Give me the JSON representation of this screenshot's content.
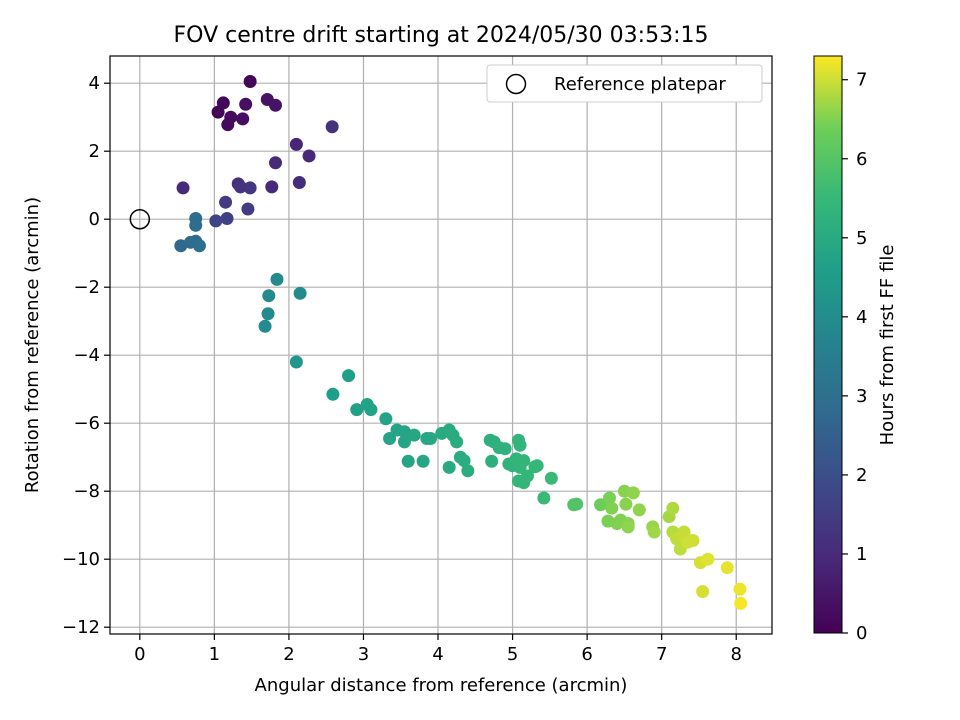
{
  "chart_data": {
    "type": "scatter",
    "title": "FOV centre drift starting at 2024/05/30 03:53:15",
    "xlabel": "Angular distance from reference (arcmin)",
    "ylabel": "Rotation from reference (arcmin)",
    "xlim": [
      -0.4,
      8.48
    ],
    "ylim": [
      -12.2,
      4.8
    ],
    "xticks": [
      0,
      1,
      2,
      3,
      4,
      5,
      6,
      7,
      8
    ],
    "yticks": [
      -12,
      -10,
      -8,
      -6,
      -4,
      -2,
      0,
      2,
      4
    ],
    "grid": true,
    "legend": {
      "position": "top-right",
      "entries": [
        "Reference platepar"
      ]
    },
    "reference_point": {
      "x": 0,
      "y": 0
    },
    "colorbar": {
      "label": "Hours from first FF file",
      "range": [
        0,
        7.3
      ],
      "ticks": [
        0,
        1,
        2,
        3,
        4,
        5,
        6,
        7
      ],
      "colormap": "viridis"
    },
    "points": [
      [
        1.05,
        3.15,
        0.05
      ],
      [
        1.48,
        4.05,
        0.1
      ],
      [
        1.12,
        3.42,
        0.15
      ],
      [
        1.18,
        2.78,
        0.2
      ],
      [
        1.22,
        3.0,
        0.25
      ],
      [
        1.38,
        2.95,
        0.3
      ],
      [
        1.42,
        3.38,
        0.35
      ],
      [
        1.71,
        3.52,
        0.4
      ],
      [
        1.82,
        3.35,
        0.45
      ],
      [
        2.1,
        2.2,
        0.85
      ],
      [
        2.27,
        1.86,
        0.9
      ],
      [
        1.82,
        1.66,
        1.0
      ],
      [
        2.58,
        2.72,
        1.2
      ],
      [
        2.14,
        1.08,
        1.05
      ],
      [
        1.77,
        0.95,
        1.0
      ],
      [
        1.32,
        1.04,
        1.1
      ],
      [
        1.48,
        0.92,
        1.3
      ],
      [
        1.35,
        0.95,
        1.25
      ],
      [
        0.58,
        0.92,
        1.0
      ],
      [
        1.15,
        0.5,
        1.4
      ],
      [
        1.45,
        0.3,
        1.5
      ],
      [
        1.17,
        0.02,
        1.6
      ],
      [
        1.02,
        -0.05,
        1.7
      ],
      [
        0.75,
        0.02,
        2.9
      ],
      [
        0.75,
        -0.18,
        2.9
      ],
      [
        0.55,
        -0.78,
        2.75
      ],
      [
        0.68,
        -0.68,
        2.85
      ],
      [
        0.75,
        -0.65,
        2.9
      ],
      [
        0.8,
        -0.78,
        2.95
      ],
      [
        1.84,
        -1.77,
        3.9
      ],
      [
        2.15,
        -2.18,
        3.95
      ],
      [
        1.73,
        -2.25,
        3.95
      ],
      [
        1.72,
        -2.78,
        3.95
      ],
      [
        1.68,
        -3.15,
        3.9
      ],
      [
        2.1,
        -4.2,
        4.3
      ],
      [
        2.59,
        -5.15,
        4.55
      ],
      [
        2.8,
        -4.6,
        4.6
      ],
      [
        2.91,
        -5.6,
        4.65
      ],
      [
        3.05,
        -5.45,
        4.7
      ],
      [
        3.1,
        -5.6,
        4.7
      ],
      [
        3.3,
        -5.87,
        4.75
      ],
      [
        3.35,
        -6.45,
        4.75
      ],
      [
        3.45,
        -6.2,
        4.8
      ],
      [
        3.55,
        -6.25,
        4.8
      ],
      [
        3.55,
        -6.55,
        4.8
      ],
      [
        3.6,
        -7.12,
        4.8
      ],
      [
        3.68,
        -6.35,
        4.85
      ],
      [
        3.8,
        -7.12,
        4.85
      ],
      [
        3.85,
        -6.45,
        4.9
      ],
      [
        3.9,
        -6.45,
        4.9
      ],
      [
        4.05,
        -6.3,
        5.0
      ],
      [
        4.15,
        -6.2,
        5.0
      ],
      [
        4.15,
        -7.3,
        5.0
      ],
      [
        4.2,
        -6.35,
        5.05
      ],
      [
        4.25,
        -6.55,
        5.05
      ],
      [
        4.3,
        -7.0,
        5.05
      ],
      [
        4.35,
        -7.1,
        5.1
      ],
      [
        4.4,
        -7.4,
        5.1
      ],
      [
        4.7,
        -6.5,
        5.2
      ],
      [
        4.75,
        -6.55,
        5.2
      ],
      [
        4.72,
        -7.12,
        5.2
      ],
      [
        4.82,
        -6.72,
        5.25
      ],
      [
        4.9,
        -6.75,
        5.25
      ],
      [
        4.95,
        -7.2,
        5.3
      ],
      [
        5.0,
        -7.25,
        5.3
      ],
      [
        5.08,
        -6.5,
        5.35
      ],
      [
        5.1,
        -6.65,
        5.35
      ],
      [
        5.05,
        -7.05,
        5.35
      ],
      [
        5.1,
        -7.3,
        5.4
      ],
      [
        5.15,
        -7.1,
        5.4
      ],
      [
        5.08,
        -7.7,
        5.4
      ],
      [
        5.15,
        -7.75,
        5.4
      ],
      [
        5.2,
        -7.55,
        5.45
      ],
      [
        5.3,
        -7.28,
        5.45
      ],
      [
        5.33,
        -7.25,
        5.45
      ],
      [
        5.42,
        -8.2,
        5.55
      ],
      [
        5.52,
        -7.62,
        5.55
      ],
      [
        5.82,
        -8.4,
        5.95
      ],
      [
        5.86,
        -8.38,
        5.95
      ],
      [
        6.18,
        -8.4,
        6.35
      ],
      [
        6.28,
        -8.88,
        6.45
      ],
      [
        6.3,
        -8.2,
        6.45
      ],
      [
        6.33,
        -8.5,
        6.5
      ],
      [
        6.4,
        -8.95,
        6.5
      ],
      [
        6.45,
        -8.85,
        6.5
      ],
      [
        6.5,
        -8.0,
        6.55
      ],
      [
        6.52,
        -8.38,
        6.55
      ],
      [
        6.55,
        -8.95,
        6.55
      ],
      [
        6.55,
        -9.05,
        6.6
      ],
      [
        6.62,
        -8.05,
        6.6
      ],
      [
        6.7,
        -8.55,
        6.6
      ],
      [
        6.88,
        -9.05,
        6.65
      ],
      [
        6.9,
        -9.2,
        6.7
      ],
      [
        7.1,
        -8.75,
        6.75
      ],
      [
        7.15,
        -8.5,
        6.8
      ],
      [
        7.15,
        -9.2,
        6.85
      ],
      [
        7.2,
        -9.4,
        6.9
      ],
      [
        7.25,
        -9.7,
        6.9
      ],
      [
        7.28,
        -9.3,
        6.95
      ],
      [
        7.3,
        -9.2,
        6.95
      ],
      [
        7.35,
        -9.5,
        7.0
      ],
      [
        7.42,
        -9.45,
        7.0
      ],
      [
        7.52,
        -10.1,
        7.05
      ],
      [
        7.55,
        -10.95,
        7.05
      ],
      [
        7.62,
        -10.0,
        7.1
      ],
      [
        7.88,
        -10.25,
        7.15
      ],
      [
        8.05,
        -10.88,
        7.2
      ],
      [
        8.06,
        -11.3,
        7.25
      ]
    ]
  }
}
